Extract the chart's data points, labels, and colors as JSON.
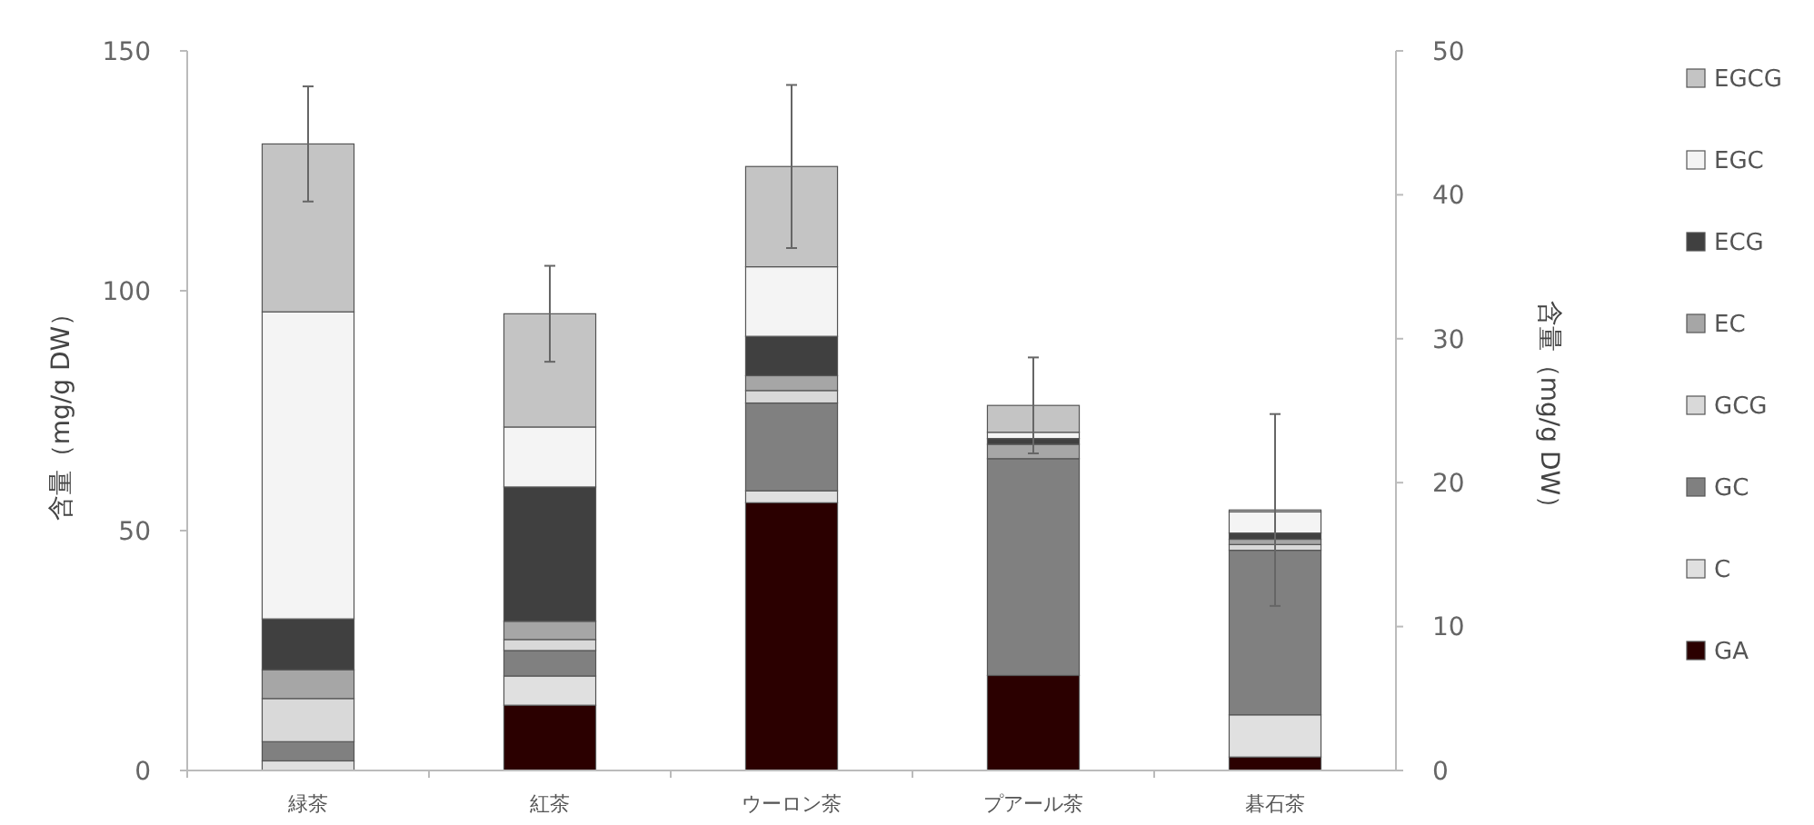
{
  "chart_data": {
    "type": "bar",
    "stacked": true,
    "ylabel": "含量（mg/g DW）",
    "y2label": "含量（mg/g DW）",
    "categories": [
      "緑茶",
      "紅茶",
      "ウーロン茶",
      "プアール茶",
      "碁石茶"
    ],
    "ylim": [
      0,
      150
    ],
    "yticks": [
      0,
      50,
      100,
      150
    ],
    "y2lim": [
      0,
      50
    ],
    "y2ticks": [
      0,
      10,
      20,
      30,
      40,
      50
    ],
    "grid": false,
    "legend": "right",
    "series": [
      {
        "name": "GA",
        "color": "#2b0000",
        "values": [
          null,
          13.6,
          55.8,
          19.8,
          2.8
        ]
      },
      {
        "name": "C",
        "color": "#e0e0e0",
        "values": [
          2,
          6.1,
          2.5,
          null,
          8.8
        ]
      },
      {
        "name": "GC",
        "color": "#808080",
        "values": [
          4,
          5.3,
          18.3,
          45.2,
          34.3
        ]
      },
      {
        "name": "GCG",
        "color": "#d9d9d9",
        "values": [
          9,
          2.3,
          2.6,
          null,
          1.2
        ]
      },
      {
        "name": "EC",
        "color": "#a6a6a6",
        "values": [
          6,
          3.8,
          3.1,
          3,
          1.1
        ]
      },
      {
        "name": "ECG",
        "color": "#404040",
        "values": [
          10.6,
          28,
          8.2,
          1.2,
          1.3
        ]
      },
      {
        "name": "EGC",
        "color": "#f4f4f4",
        "values": [
          64,
          12.5,
          14.5,
          1.3,
          4.4
        ]
      },
      {
        "name": "EGCG",
        "color": "#c4c4c4",
        "values": [
          35,
          23.6,
          20.9,
          5.6,
          0.4
        ],
        "errors": [
          12,
          10,
          17,
          10,
          20
        ]
      }
    ]
  }
}
